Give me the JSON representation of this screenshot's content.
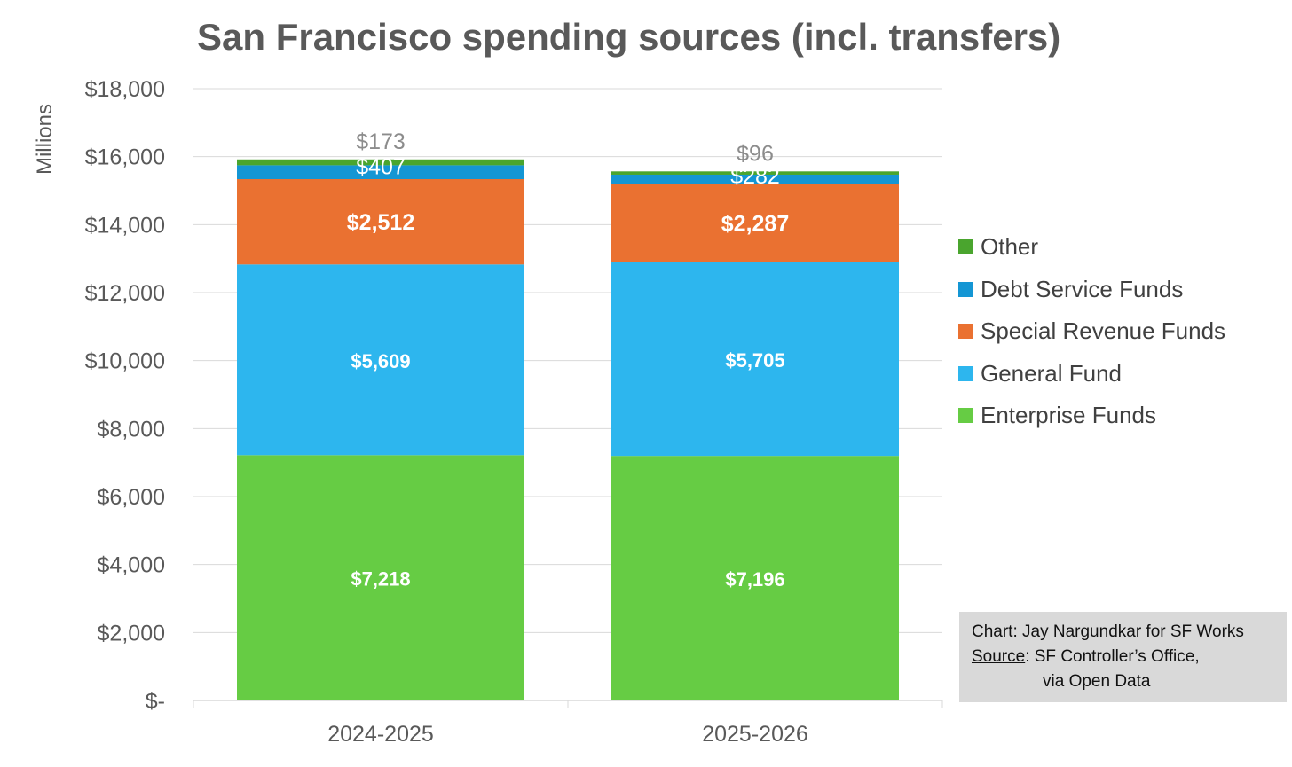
{
  "chart_data": {
    "type": "stacked-bar",
    "title": "San Francisco spending sources (incl. transfers)",
    "ylabel": "Millions",
    "xlabel": "",
    "ylim": [
      0,
      18000
    ],
    "yticks": [
      0,
      2000,
      4000,
      6000,
      8000,
      10000,
      12000,
      14000,
      16000,
      18000
    ],
    "ytick_labels": [
      "$-",
      "$2,000",
      "$4,000",
      "$6,000",
      "$8,000",
      "$10,000",
      "$12,000",
      "$14,000",
      "$16,000",
      "$18,000"
    ],
    "categories": [
      "2024-2025",
      "2025-2026"
    ],
    "series": [
      {
        "name": "Enterprise Funds",
        "color": "#66cc44",
        "label_color": "#ffffff",
        "bold": true,
        "values": [
          7218,
          7196
        ],
        "labels": [
          "$7,218",
          "$7,196"
        ]
      },
      {
        "name": "General Fund",
        "color": "#2db6ee",
        "label_color": "#ffffff",
        "bold": true,
        "values": [
          5609,
          5705
        ],
        "labels": [
          "$5,609",
          "$5,705"
        ]
      },
      {
        "name": "Special Revenue Funds",
        "color": "#ea7131",
        "label_color": "#ffffff",
        "bold": true,
        "values": [
          2512,
          2287
        ],
        "labels": [
          "$2,512",
          "$2,287"
        ]
      },
      {
        "name": "Debt Service Funds",
        "color": "#1496d4",
        "label_color": "#ffffff",
        "bold": false,
        "values": [
          407,
          282
        ],
        "labels": [
          "$407",
          "$282"
        ]
      },
      {
        "name": "Other",
        "color": "#4aa52e",
        "label_color": "#8c8c8c",
        "bold": false,
        "values": [
          173,
          96
        ],
        "labels": [
          "$173",
          "$96"
        ]
      }
    ],
    "legend": {
      "placement": "right",
      "order": [
        "Other",
        "Debt Service Funds",
        "Special Revenue Funds",
        "General Fund",
        "Enterprise Funds"
      ]
    },
    "grid": true
  },
  "credit": {
    "chart_key": "Chart",
    "chart_value": ": Jay Nargundkar for SF Works",
    "source_key": "Source",
    "source_value": ": SF Controller’s Office,",
    "source_value_line2": "via Open Data"
  }
}
